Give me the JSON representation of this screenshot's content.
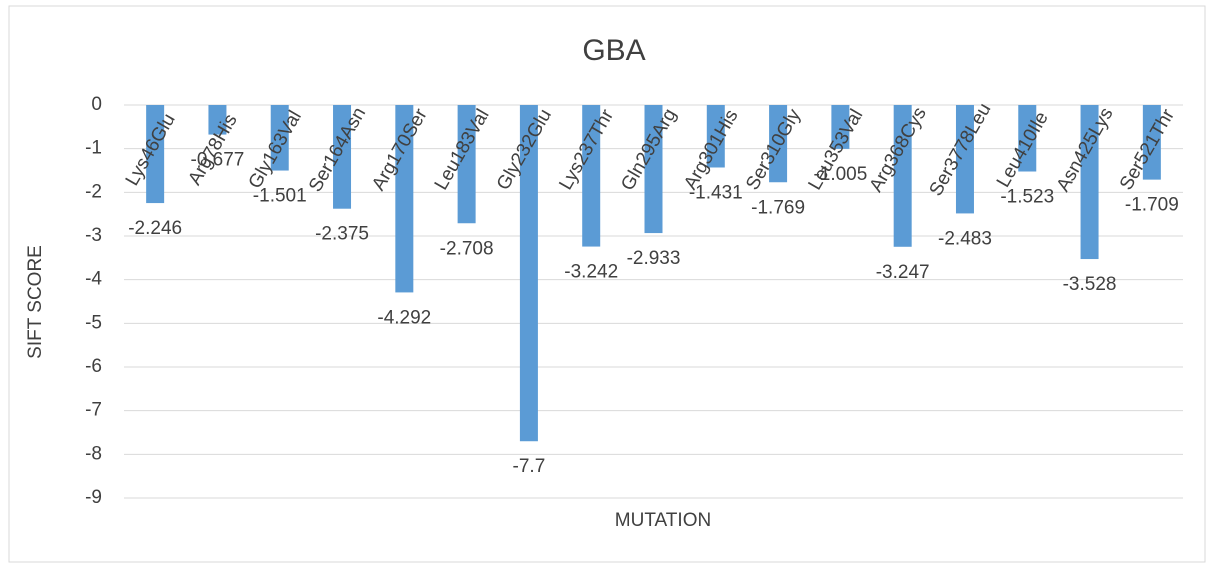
{
  "chart_data": {
    "type": "bar",
    "title": "GBA",
    "x_label": "MUTATION",
    "y_label": "SIFT SCORE",
    "categories": [
      "Lys46Glu",
      "Arg78His",
      "Gly163Val",
      "Ser164Asn",
      "Arg170Ser",
      "Leu183Val",
      "Gly232Glu",
      "Lys237Thr",
      "Gln295Arg",
      "Arg301His",
      "Ser310Gly",
      "Leu353Val",
      "Arg368Cys",
      "Ser3778Leu",
      "Leu410Ile",
      "Asn425Lys",
      "Ser521Thr"
    ],
    "values": [
      -2.246,
      -0.677,
      -1.501,
      -2.375,
      -4.292,
      -2.708,
      -7.7,
      -3.242,
      -2.933,
      -1.431,
      -1.769,
      -1.005,
      -3.247,
      -2.483,
      -1.523,
      -3.528,
      -1.709
    ],
    "color": "#5b9bd5",
    "ylim": [
      -9,
      0
    ],
    "yticks": [
      0,
      -1,
      -2,
      -3,
      -4,
      -5,
      -6,
      -7,
      -8,
      -9
    ],
    "grid": true
  }
}
